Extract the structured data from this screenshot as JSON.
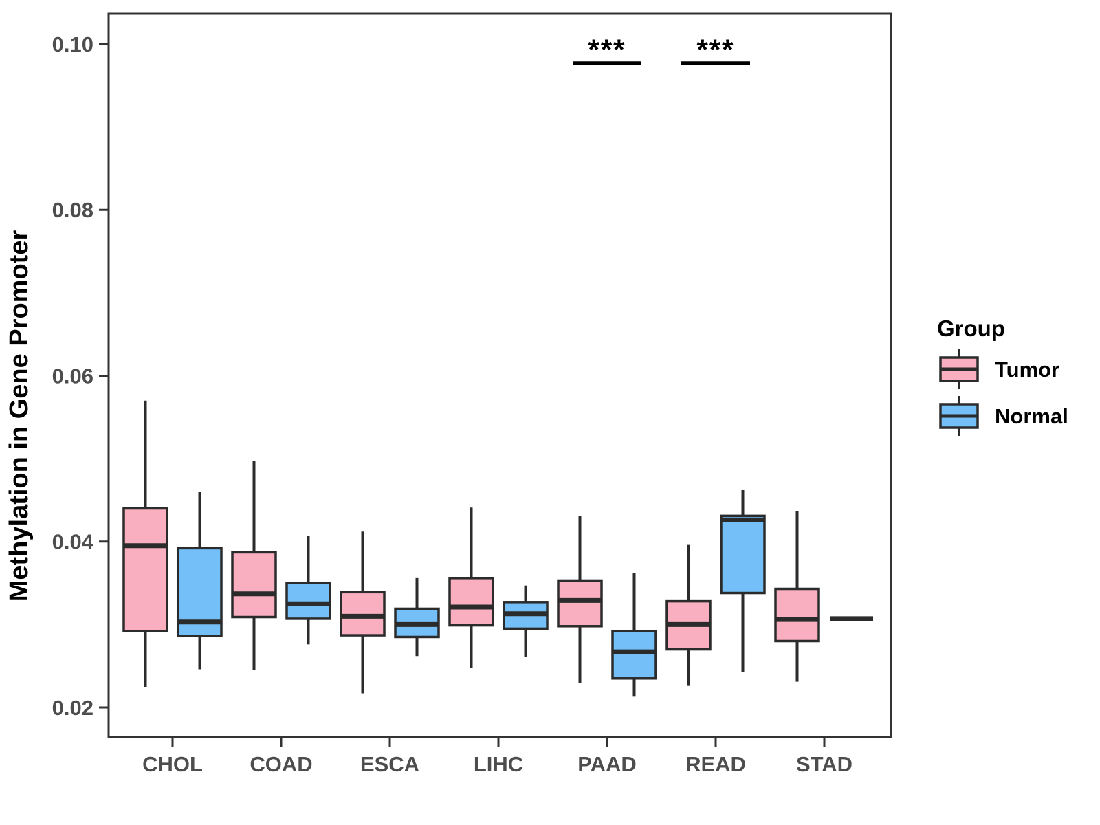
{
  "chart_data": {
    "type": "boxplot",
    "title": "",
    "xlabel": "",
    "ylabel": "Methylation in Gene Promoter",
    "categories": [
      "CHOL",
      "COAD",
      "ESCA",
      "LIHC",
      "PAAD",
      "READ",
      "STAD"
    ],
    "ylim": [
      0.0164,
      0.1036
    ],
    "yticks": [
      0.02,
      0.04,
      0.06,
      0.08,
      0.1
    ],
    "ytick_labels": [
      "0.02",
      "0.04",
      "0.06",
      "0.08",
      "0.10"
    ],
    "grid": false,
    "legend": {
      "title": "Group",
      "position": "right",
      "entries": [
        {
          "label": "Tumor",
          "color": "#F9AFC0"
        },
        {
          "label": "Normal",
          "color": "#74BFF8"
        }
      ]
    },
    "series": [
      {
        "name": "Tumor",
        "color": "#F9AFC0",
        "boxes": [
          {
            "category": "CHOL",
            "min": 0.0224,
            "q1": 0.0292,
            "median": 0.0395,
            "q3": 0.044,
            "max": 0.057
          },
          {
            "category": "COAD",
            "min": 0.0245,
            "q1": 0.0309,
            "median": 0.0337,
            "q3": 0.0387,
            "max": 0.0497
          },
          {
            "category": "ESCA",
            "min": 0.0217,
            "q1": 0.0287,
            "median": 0.031,
            "q3": 0.0339,
            "max": 0.0412
          },
          {
            "category": "LIHC",
            "min": 0.0248,
            "q1": 0.0299,
            "median": 0.0321,
            "q3": 0.0356,
            "max": 0.0441
          },
          {
            "category": "PAAD",
            "min": 0.0229,
            "q1": 0.0298,
            "median": 0.0329,
            "q3": 0.0353,
            "max": 0.0431
          },
          {
            "category": "READ",
            "min": 0.0226,
            "q1": 0.027,
            "median": 0.03,
            "q3": 0.0328,
            "max": 0.0396
          },
          {
            "category": "STAD",
            "min": 0.0231,
            "q1": 0.028,
            "median": 0.0306,
            "q3": 0.0343,
            "max": 0.0437
          }
        ]
      },
      {
        "name": "Normal",
        "color": "#74BFF8",
        "boxes": [
          {
            "category": "CHOL",
            "min": 0.0246,
            "q1": 0.0286,
            "median": 0.0303,
            "q3": 0.0392,
            "max": 0.046
          },
          {
            "category": "COAD",
            "min": 0.0276,
            "q1": 0.0307,
            "median": 0.0325,
            "q3": 0.035,
            "max": 0.0407
          },
          {
            "category": "ESCA",
            "min": 0.0262,
            "q1": 0.0285,
            "median": 0.03,
            "q3": 0.0319,
            "max": 0.0356
          },
          {
            "category": "LIHC",
            "min": 0.0261,
            "q1": 0.0295,
            "median": 0.0313,
            "q3": 0.0327,
            "max": 0.0347
          },
          {
            "category": "PAAD",
            "min": 0.0213,
            "q1": 0.0235,
            "median": 0.0267,
            "q3": 0.0292,
            "max": 0.0362
          },
          {
            "category": "READ",
            "min": 0.0243,
            "q1": 0.0338,
            "median": 0.0426,
            "q3": 0.0431,
            "max": 0.0462
          },
          {
            "category": "STAD",
            "min": 0.0307,
            "q1": 0.0307,
            "median": 0.0307,
            "q3": 0.0307,
            "max": 0.0307
          }
        ]
      }
    ],
    "annotations": [
      {
        "label": "***",
        "category": "PAAD",
        "bar_y": 0.0977
      },
      {
        "label": "***",
        "category": "READ",
        "bar_y": 0.0977
      }
    ]
  },
  "colors": {
    "box_border": "#2B2B2B",
    "axis": "#333333",
    "tick_text": "#4D4D4D",
    "label_text": "#000000",
    "background": "#FFFFFF"
  }
}
